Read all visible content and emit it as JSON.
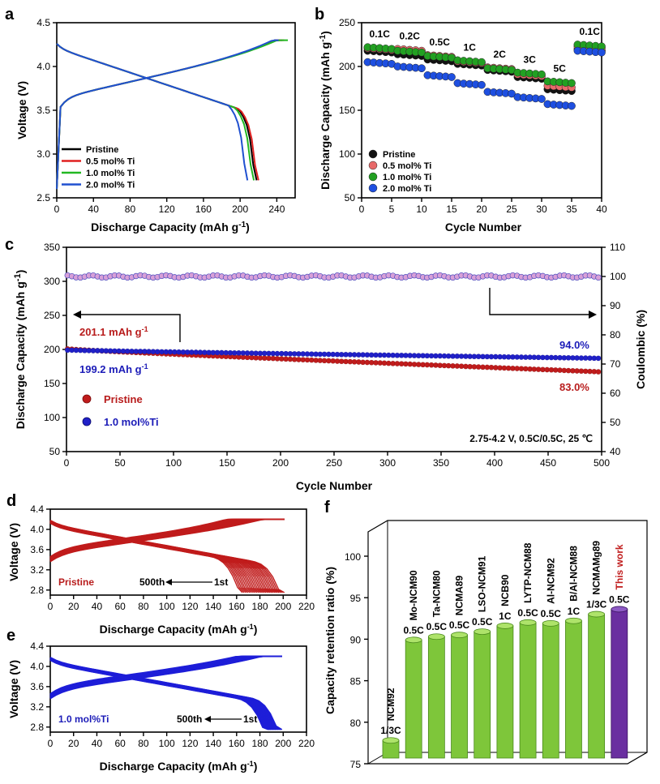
{
  "colors": {
    "pristine": "#000000",
    "ti05": "#e02020",
    "ti10": "#22b822",
    "ti20": "#2050d0",
    "red": "#b81c1c",
    "blue": "#1c1cb8",
    "green": "#7ec63a",
    "purple": "#6a2fa0"
  },
  "chart_data": [
    {
      "panel": "a",
      "type": "line",
      "xlabel": "Discharge Capacity (mAh g-1)",
      "ylabel": "Voltage (V)",
      "xlim": [
        0,
        260
      ],
      "ylim": [
        2.5,
        4.5
      ],
      "xticks": [
        "0",
        "40",
        "80",
        "120",
        "160",
        "200",
        "240"
      ],
      "yticks": [
        "2.5",
        "3.0",
        "3.5",
        "4.0",
        "4.5"
      ],
      "series": [
        {
          "name": "Pristine",
          "color": "#000000",
          "charge_end": 246,
          "discharge_end": 218
        },
        {
          "name": "0.5 mol% Ti",
          "color": "#e02020",
          "charge_end": 248,
          "discharge_end": 220
        },
        {
          "name": "1.0 mol% Ti",
          "color": "#22b822",
          "charge_end": 252,
          "discharge_end": 215
        },
        {
          "name": "2.0 mol% Ti",
          "color": "#2050d0",
          "charge_end": 242,
          "discharge_end": 208
        }
      ]
    },
    {
      "panel": "b",
      "type": "scatter",
      "xlabel": "Cycle Number",
      "ylabel": "Discharge Capacity (mAh g-1)",
      "xlim": [
        0,
        40
      ],
      "ylim": [
        50,
        250
      ],
      "xticks": [
        "0",
        "5",
        "10",
        "15",
        "20",
        "25",
        "30",
        "35",
        "40"
      ],
      "yticks": [
        "50",
        "100",
        "150",
        "200",
        "250"
      ],
      "rates": [
        "0.1C",
        "0.2C",
        "0.5C",
        "1C",
        "2C",
        "3C",
        "5C",
        "0.1C"
      ],
      "series": [
        {
          "name": "Pristine",
          "color": "#111111",
          "values": [
            218,
            214,
            208,
            203,
            196,
            188,
            174,
            220
          ]
        },
        {
          "name": "0.5 mol% Ti",
          "color": "#e86a6a",
          "values": [
            221,
            220,
            213,
            206,
            199,
            191,
            178,
            223
          ]
        },
        {
          "name": "1.0 mol% Ti",
          "color": "#22a022",
          "values": [
            222,
            218,
            212,
            207,
            198,
            193,
            183,
            225
          ]
        },
        {
          "name": "2.0 mol% Ti",
          "color": "#1e4fe0",
          "values": [
            205,
            200,
            190,
            181,
            171,
            165,
            157,
            218
          ]
        }
      ]
    },
    {
      "panel": "c",
      "type": "scatter",
      "xlabel": "Cycle Number",
      "ylabel": "Discharge Capacity (mAh g-1)",
      "y2label": "Coulombic (%)",
      "xlim": [
        0,
        500
      ],
      "ylim": [
        50,
        350
      ],
      "y2lim": [
        40,
        110
      ],
      "xticks": [
        "0",
        "50",
        "100",
        "150",
        "200",
        "250",
        "300",
        "350",
        "400",
        "450",
        "500"
      ],
      "yticks": [
        "50",
        "100",
        "150",
        "200",
        "250",
        "300",
        "350"
      ],
      "y2ticks": [
        "40",
        "50",
        "60",
        "70",
        "80",
        "90",
        "100",
        "110"
      ],
      "series": [
        {
          "name": "Pristine",
          "color": "#c01c1c",
          "start": 201.1,
          "end": 167,
          "retention": "83.0%"
        },
        {
          "name": "1.0 mol%Ti",
          "color": "#2020c8",
          "start": 199.2,
          "end": 187,
          "retention": "94.0%"
        }
      ],
      "coulombic": 100
    },
    {
      "panel": "d",
      "type": "line",
      "xlabel": "Discharge Capacity (mAh g-1)",
      "ylabel": "Voltage (V)",
      "xlim": [
        0,
        220
      ],
      "ylim": [
        2.7,
        4.4
      ],
      "xticks": [
        "0",
        "20",
        "40",
        "60",
        "80",
        "100",
        "120",
        "140",
        "160",
        "180",
        "200",
        "220"
      ],
      "yticks": [
        "2.8",
        "3.2",
        "3.6",
        "4.0",
        "4.4"
      ],
      "sample": "Pristine",
      "color": "#c01c1c",
      "first_cycle_capacity": 201,
      "last_cycle_capacity": 165
    },
    {
      "panel": "e",
      "type": "line",
      "xlabel": "Discharge Capacity (mAh g-1)",
      "ylabel": "Voltage (V)",
      "xlim": [
        0,
        220
      ],
      "ylim": [
        2.7,
        4.4
      ],
      "xticks": [
        "0",
        "20",
        "40",
        "60",
        "80",
        "100",
        "120",
        "140",
        "160",
        "180",
        "200",
        "220"
      ],
      "yticks": [
        "2.8",
        "3.2",
        "3.6",
        "4.0",
        "4.4"
      ],
      "sample": "1.0 mol%Ti",
      "color": "#1e1ed8",
      "first_cycle_capacity": 199,
      "last_cycle_capacity": 187
    },
    {
      "panel": "f",
      "type": "bar",
      "ylabel": "Capacity retention ratio (%)",
      "ylim": [
        75,
        100
      ],
      "yticks": [
        "75",
        "80",
        "85",
        "90",
        "95",
        "100"
      ],
      "categories": [
        "NCM92",
        "Mo-NCM90",
        "Ta-NCM80",
        "NCMA89",
        "LSO-NCM91",
        "NCB90",
        "LYTP-NCM88",
        "Al-NCM92",
        "B/Al-NCM88",
        "NCMAMg89",
        "This work"
      ],
      "rates": [
        "1/3C",
        "0.5C",
        "0.5C",
        "0.5C",
        "0.5C",
        "1C",
        "0.5C",
        "0.5C",
        "1C",
        "1/3C",
        "0.5C"
      ],
      "values": [
        78.2,
        90.3,
        90.7,
        90.9,
        91.3,
        92.0,
        92.4,
        92.3,
        92.6,
        93.4,
        94.0
      ]
    }
  ],
  "text": {
    "panels": [
      "a",
      "b",
      "c",
      "d",
      "e",
      "f"
    ],
    "c_pristine_start": "201.1 mAh g",
    "c_ti_start": "199.2 mAh g",
    "c_condition": "2.75-4.2 V, 0.5C/0.5C, 25 ℃",
    "cycle_500": "500th",
    "cycle_1": "1st"
  }
}
